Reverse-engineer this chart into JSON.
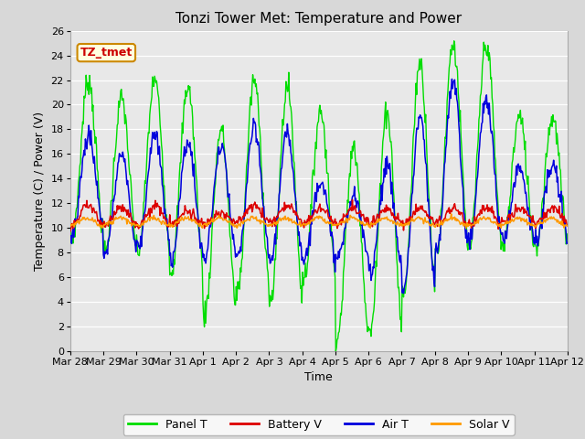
{
  "title": "Tonzi Tower Met: Temperature and Power",
  "xlabel": "Time",
  "ylabel": "Temperature (C) / Power (V)",
  "ylim": [
    0,
    26
  ],
  "yticks": [
    0,
    2,
    4,
    6,
    8,
    10,
    12,
    14,
    16,
    18,
    20,
    22,
    24,
    26
  ],
  "x_labels": [
    "Mar 28",
    "Mar 29",
    "Mar 30",
    "Mar 31",
    "Apr 1",
    "Apr 2",
    "Apr 3",
    "Apr 4",
    "Apr 5",
    "Apr 6",
    "Apr 7",
    "Apr 8",
    "Apr 9",
    "Apr 10",
    "Apr 11",
    "Apr 12"
  ],
  "annotation_text": "TZ_tmet",
  "annotation_color": "#cc0000",
  "annotation_bg": "#ffffe0",
  "annotation_border": "#cc8800",
  "colors": {
    "Panel T": "#00dd00",
    "Battery V": "#dd0000",
    "Air T": "#0000dd",
    "Solar V": "#ff9900"
  },
  "legend_labels": [
    "Panel T",
    "Battery V",
    "Air T",
    "Solar V"
  ],
  "plot_bg": "#e8e8e8",
  "fig_bg": "#d8d8d8",
  "title_fontsize": 11,
  "axis_fontsize": 9,
  "tick_fontsize": 8
}
